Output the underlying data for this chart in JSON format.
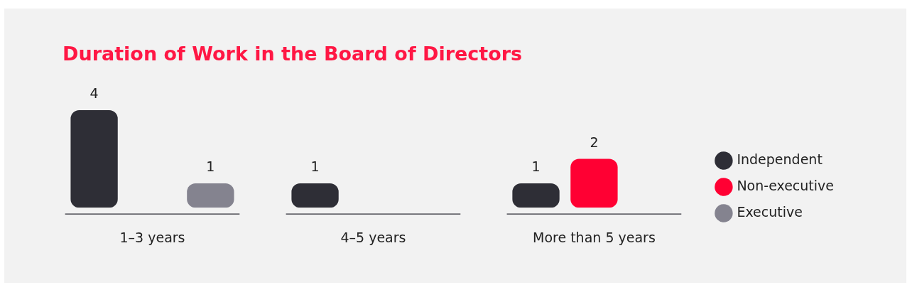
{
  "chart_data": {
    "type": "bar",
    "title": "Duration of Work in the Board of Directors",
    "categories": [
      "1–3 years",
      "4–5 years",
      "More than 5 years"
    ],
    "series": [
      {
        "name": "Independent",
        "color": "#2e2e36",
        "values": [
          4,
          1,
          1
        ]
      },
      {
        "name": "Non-executive",
        "color": "#ff0033",
        "values": [
          null,
          null,
          2
        ]
      },
      {
        "name": "Executive",
        "color": "#84838f",
        "values": [
          1,
          null,
          null
        ]
      }
    ],
    "data_labels": true,
    "legend": "right",
    "grid": false
  }
}
